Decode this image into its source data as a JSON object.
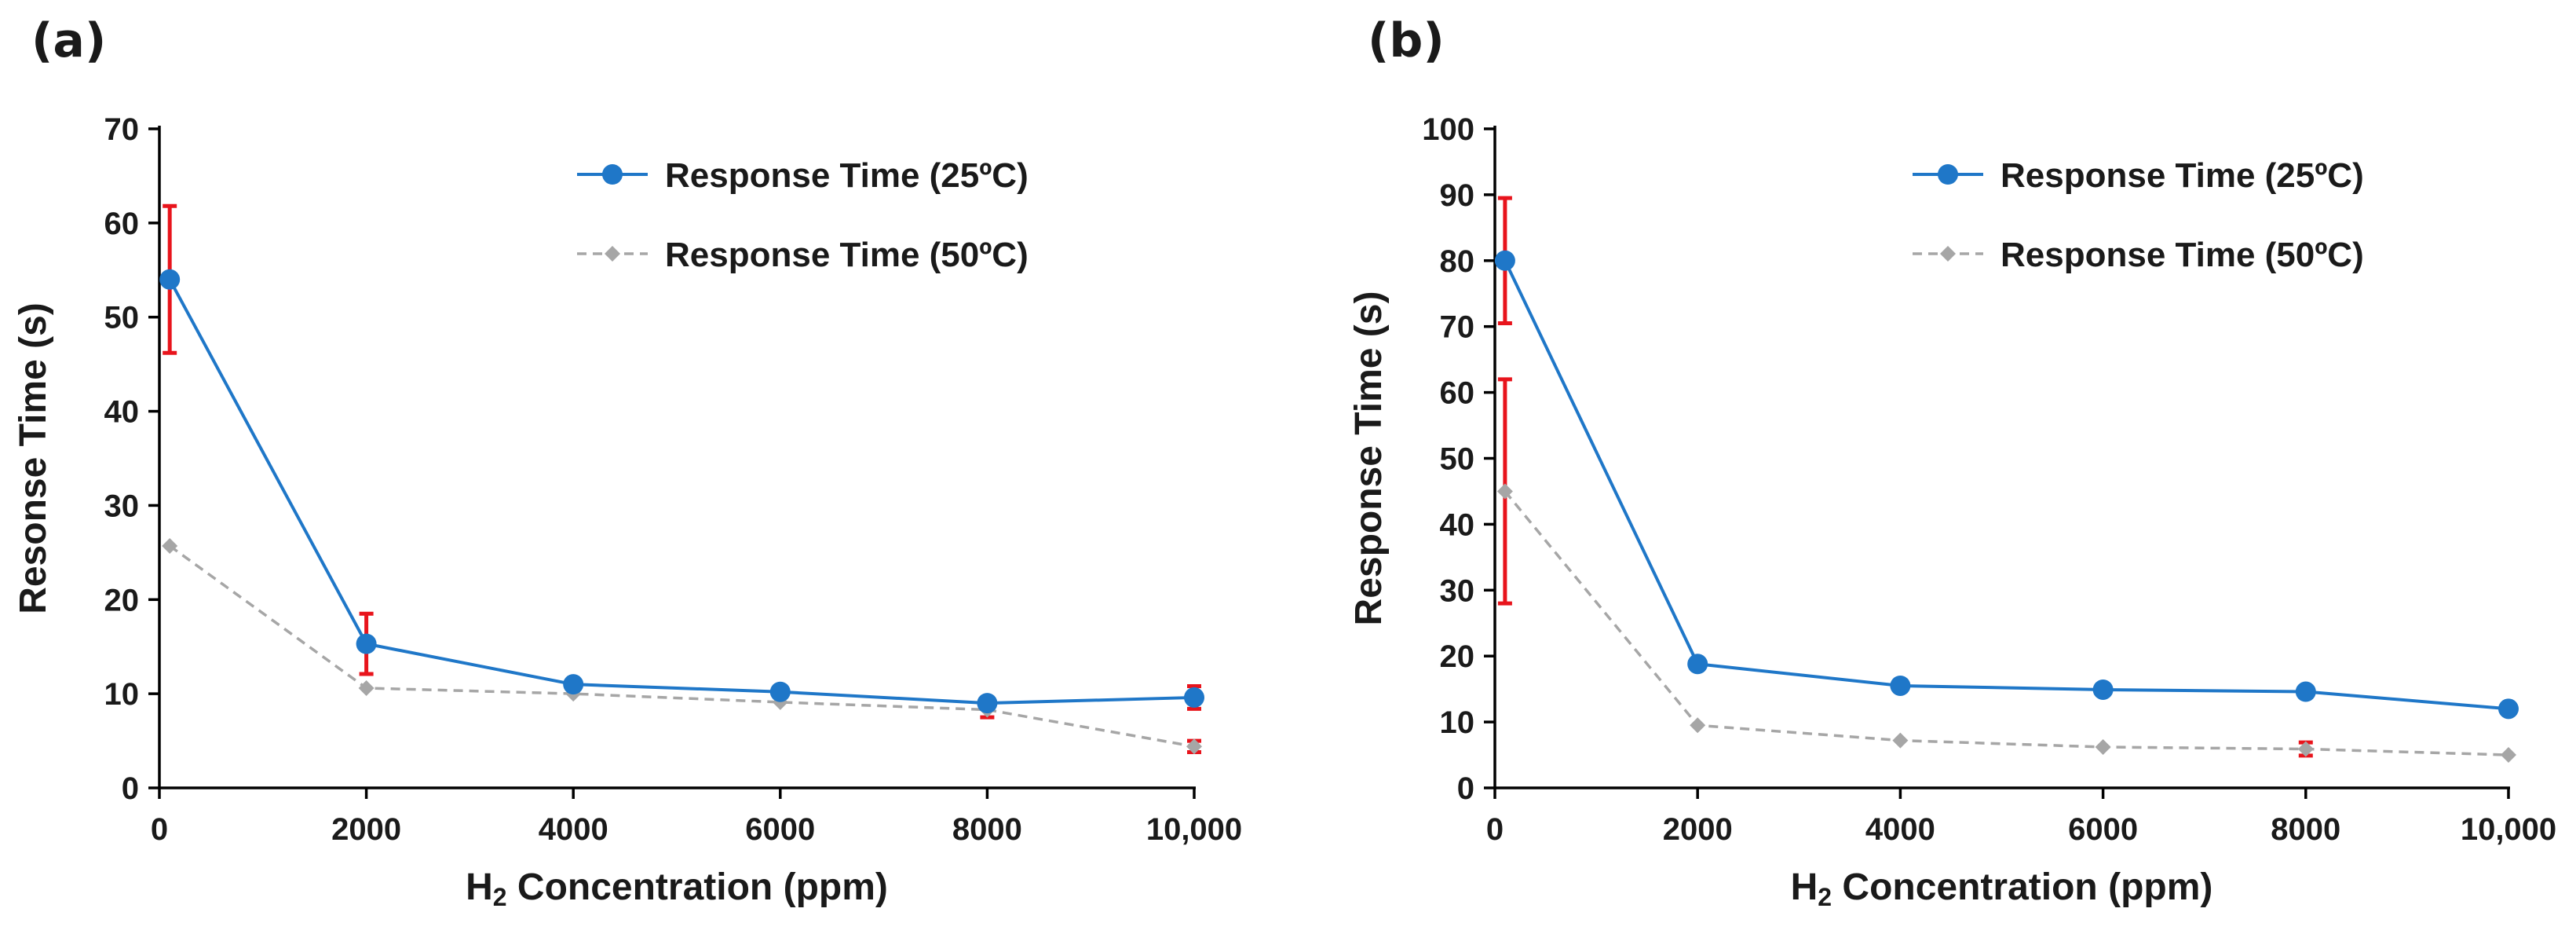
{
  "colors": {
    "series_25C": "#1f77c8",
    "series_50C": "#a6a6a6",
    "error_bar": "#e8141c",
    "axis": "#000000",
    "text": "#1a1a1a"
  },
  "chart_data": [
    {
      "type": "line",
      "panel_label": "(a)",
      "xlabel_main": "H",
      "xlabel_sub": "2",
      "xlabel_rest": " Concentration (ppm)",
      "ylabel": "Resonse Time (s)",
      "xlim": [
        0,
        10000
      ],
      "ylim": [
        0,
        70
      ],
      "xticks": [
        0,
        2000,
        4000,
        6000,
        8000,
        10000
      ],
      "xtick_labels": [
        "0",
        "2000",
        "4000",
        "6000",
        "8000",
        "10,000"
      ],
      "yticks": [
        0,
        10,
        20,
        30,
        40,
        50,
        60,
        70
      ],
      "ytick_labels": [
        "0",
        "10",
        "20",
        "30",
        "40",
        "50",
        "60",
        "70"
      ],
      "legend_position": "top-right",
      "x": [
        100,
        2000,
        4000,
        6000,
        8000,
        10000
      ],
      "series": [
        {
          "name": "Response Time (25ºC)",
          "values": [
            54,
            15.3,
            11,
            10.2,
            9,
            9.6
          ],
          "errors": [
            7.8,
            3.2,
            0,
            0,
            0,
            1.2
          ],
          "marker": "circle",
          "line": "solid"
        },
        {
          "name": "Response Time (50ºC)",
          "values": [
            25.7,
            10.6,
            10,
            9.1,
            8.3,
            4.4
          ],
          "errors": [
            0,
            0,
            0,
            0,
            0.8,
            0.6
          ],
          "marker": "diamond",
          "line": "dashed"
        }
      ]
    },
    {
      "type": "line",
      "panel_label": "(b)",
      "xlabel_main": "H",
      "xlabel_sub": "2",
      "xlabel_rest": " Concentration (ppm)",
      "ylabel": "Response Time (s)",
      "xlim": [
        0,
        10000
      ],
      "ylim": [
        0,
        100
      ],
      "xticks": [
        0,
        2000,
        4000,
        6000,
        8000,
        10000
      ],
      "xtick_labels": [
        "0",
        "2000",
        "4000",
        "6000",
        "8000",
        "10,000"
      ],
      "yticks": [
        0,
        10,
        20,
        30,
        40,
        50,
        60,
        70,
        80,
        90,
        100
      ],
      "ytick_labels": [
        "0",
        "10",
        "20",
        "30",
        "40",
        "50",
        "60",
        "70",
        "80",
        "90",
        "100"
      ],
      "legend_position": "top-right",
      "x": [
        100,
        2000,
        4000,
        6000,
        8000,
        10000
      ],
      "series": [
        {
          "name": "Response Time (25ºC)",
          "values": [
            80,
            18.8,
            15.5,
            14.9,
            14.6,
            12
          ],
          "errors": [
            9.5,
            0,
            0,
            0,
            0,
            0
          ],
          "marker": "circle",
          "line": "solid"
        },
        {
          "name": "Response Time (50ºC)",
          "values": [
            45,
            9.5,
            7.2,
            6.2,
            5.9,
            5
          ],
          "errors": [
            17,
            0,
            0,
            0,
            1,
            0
          ],
          "marker": "diamond",
          "line": "dashed"
        }
      ]
    }
  ]
}
